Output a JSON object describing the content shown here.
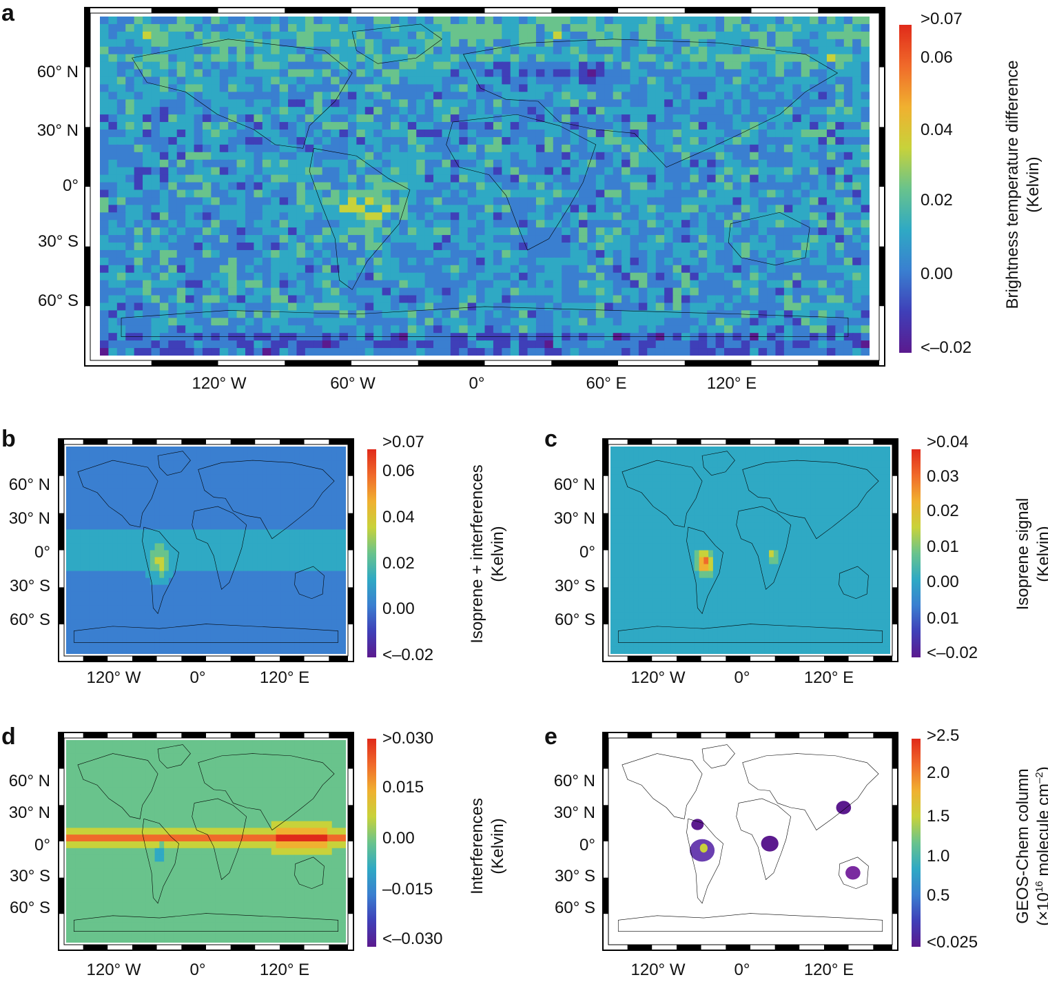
{
  "map_data": {
    "panels": [
      {
        "id": "a",
        "label": "a",
        "lat_labels": [
          "60° N",
          "30° N",
          "0°",
          "30° S",
          "60° S"
        ],
        "lon_labels": [
          "120° W",
          "60° W",
          "0°",
          "60° E",
          "120° E"
        ],
        "colorbar": {
          "ticks": [
            ">0.07",
            "0.06",
            "0.04",
            "0.02",
            "0.00",
            "<–0.02"
          ],
          "title_lines": [
            "Brightness temperature difference",
            "(Kelvin)"
          ]
        }
      },
      {
        "id": "b",
        "label": "b",
        "lat_labels": [
          "60° N",
          "30° N",
          "0°",
          "30° S",
          "60° S"
        ],
        "lon_labels": [
          "120° W",
          "0°",
          "120° E"
        ],
        "colorbar": {
          "ticks": [
            ">0.07",
            "0.06",
            "0.04",
            "0.02",
            "0.00",
            "<–0.02"
          ],
          "title_lines": [
            "Isoprene + interferences",
            "(Kelvin)"
          ]
        }
      },
      {
        "id": "c",
        "label": "c",
        "lat_labels": [
          "60° N",
          "30° N",
          "0°",
          "30° S",
          "60° S"
        ],
        "lon_labels": [
          "120° W",
          "0°",
          "120° E"
        ],
        "colorbar": {
          "ticks": [
            ">0.04",
            "0.03",
            "0.02",
            "0.01",
            "0.00",
            "0.01",
            "<–0.02"
          ],
          "title_lines": [
            "Isoprene signal",
            "(Kelvin)"
          ]
        }
      },
      {
        "id": "d",
        "label": "d",
        "lat_labels": [
          "60° N",
          "30° N",
          "0°",
          "30° S",
          "60° S"
        ],
        "lon_labels": [
          "120° W",
          "0°",
          "120° E"
        ],
        "colorbar": {
          "ticks": [
            ">0.030",
            "0.015",
            "0.00",
            "–0.015",
            "<–0.030"
          ],
          "title_lines": [
            "Interferences",
            "(Kelvin)"
          ]
        }
      },
      {
        "id": "e",
        "label": "e",
        "lat_labels": [
          "60° N",
          "30° N",
          "0°",
          "30° S",
          "60° S"
        ],
        "lon_labels": [
          "120° W",
          "0°",
          "120° E"
        ],
        "colorbar": {
          "ticks": [
            ">2.5",
            "2.0",
            "1.5",
            "1.0",
            "0.5",
            "<0.025"
          ],
          "title_lines": [
            "GEOS-Chem column",
            "(×10",
            "16",
            " molecule cm",
            "–2",
            ")"
          ]
        }
      }
    ],
    "colormap": [
      "#5b1a8e",
      "#3f3fb8",
      "#3a7fd0",
      "#2fa9c4",
      "#69c38c",
      "#c8d23a",
      "#f0b030",
      "#f06a2a",
      "#e02a1a"
    ]
  }
}
